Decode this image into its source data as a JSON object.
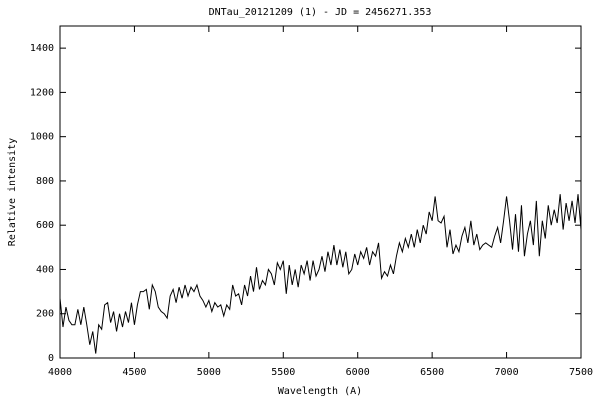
{
  "chart_data": {
    "type": "line",
    "title": "DNTau_20121209 (1) - JD = 2456271.353",
    "x_label": "Wavelength (A)",
    "y_label": "Relative intensity",
    "xlim": [
      4000,
      7500
    ],
    "ylim": [
      0,
      1500
    ],
    "xticks": [
      4000,
      4500,
      5000,
      5500,
      6000,
      6500,
      7000,
      7500
    ],
    "yticks": [
      0,
      200,
      400,
      600,
      800,
      1000,
      1200,
      1400
    ],
    "x": [
      4000,
      4020,
      4040,
      4060,
      4080,
      4100,
      4120,
      4140,
      4160,
      4180,
      4200,
      4220,
      4240,
      4260,
      4280,
      4300,
      4320,
      4340,
      4360,
      4380,
      4400,
      4420,
      4440,
      4460,
      4480,
      4500,
      4520,
      4540,
      4560,
      4580,
      4600,
      4620,
      4640,
      4660,
      4680,
      4700,
      4720,
      4740,
      4760,
      4780,
      4800,
      4820,
      4840,
      4860,
      4880,
      4900,
      4920,
      4940,
      4960,
      4980,
      5000,
      5020,
      5040,
      5060,
      5080,
      5100,
      5120,
      5140,
      5160,
      5180,
      5200,
      5220,
      5240,
      5260,
      5280,
      5300,
      5320,
      5340,
      5360,
      5380,
      5400,
      5420,
      5440,
      5460,
      5480,
      5500,
      5520,
      5540,
      5560,
      5580,
      5600,
      5620,
      5640,
      5660,
      5680,
      5700,
      5720,
      5740,
      5760,
      5780,
      5800,
      5820,
      5840,
      5860,
      5880,
      5900,
      5920,
      5940,
      5960,
      5980,
      6000,
      6020,
      6040,
      6060,
      6080,
      6100,
      6120,
      6140,
      6160,
      6180,
      6200,
      6220,
      6240,
      6260,
      6280,
      6300,
      6320,
      6340,
      6360,
      6380,
      6400,
      6420,
      6440,
      6460,
      6480,
      6500,
      6520,
      6540,
      6560,
      6580,
      6600,
      6620,
      6640,
      6660,
      6680,
      6700,
      6720,
      6740,
      6760,
      6780,
      6800,
      6820,
      6840,
      6860,
      6880,
      6900,
      6920,
      6940,
      6960,
      6980,
      7000,
      7020,
      7040,
      7060,
      7080,
      7100,
      7120,
      7140,
      7160,
      7180,
      7200,
      7220,
      7240,
      7260,
      7280,
      7300,
      7320,
      7340,
      7360,
      7380,
      7400,
      7420,
      7440,
      7460,
      7480,
      7500
    ],
    "series": [
      {
        "color": "#000000",
        "values": [
          270,
          140,
          230,
          170,
          150,
          150,
          220,
          150,
          230,
          150,
          60,
          120,
          20,
          150,
          130,
          240,
          250,
          160,
          210,
          120,
          200,
          140,
          210,
          160,
          250,
          150,
          240,
          300,
          300,
          310,
          220,
          330,
          300,
          230,
          210,
          200,
          180,
          280,
          310,
          250,
          320,
          270,
          330,
          280,
          320,
          300,
          330,
          280,
          260,
          230,
          260,
          210,
          250,
          230,
          240,
          190,
          240,
          220,
          330,
          280,
          290,
          240,
          330,
          280,
          370,
          300,
          410,
          310,
          350,
          330,
          400,
          380,
          330,
          430,
          400,
          440,
          290,
          420,
          330,
          400,
          320,
          420,
          380,
          440,
          350,
          440,
          370,
          400,
          460,
          390,
          480,
          420,
          510,
          420,
          490,
          410,
          480,
          380,
          400,
          470,
          420,
          480,
          450,
          500,
          420,
          480,
          460,
          520,
          360,
          390,
          370,
          420,
          380,
          460,
          520,
          480,
          540,
          500,
          560,
          500,
          580,
          520,
          600,
          560,
          660,
          620,
          730,
          620,
          610,
          640,
          500,
          580,
          470,
          510,
          480,
          550,
          590,
          520,
          620,
          510,
          560,
          490,
          510,
          520,
          510,
          500,
          550,
          590,
          520,
          620,
          730,
          620,
          490,
          650,
          480,
          690,
          460,
          560,
          620,
          510,
          710,
          460,
          620,
          540,
          690,
          600,
          670,
          610,
          740,
          580,
          700,
          620,
          710,
          610,
          740,
          580
        ]
      }
    ]
  }
}
